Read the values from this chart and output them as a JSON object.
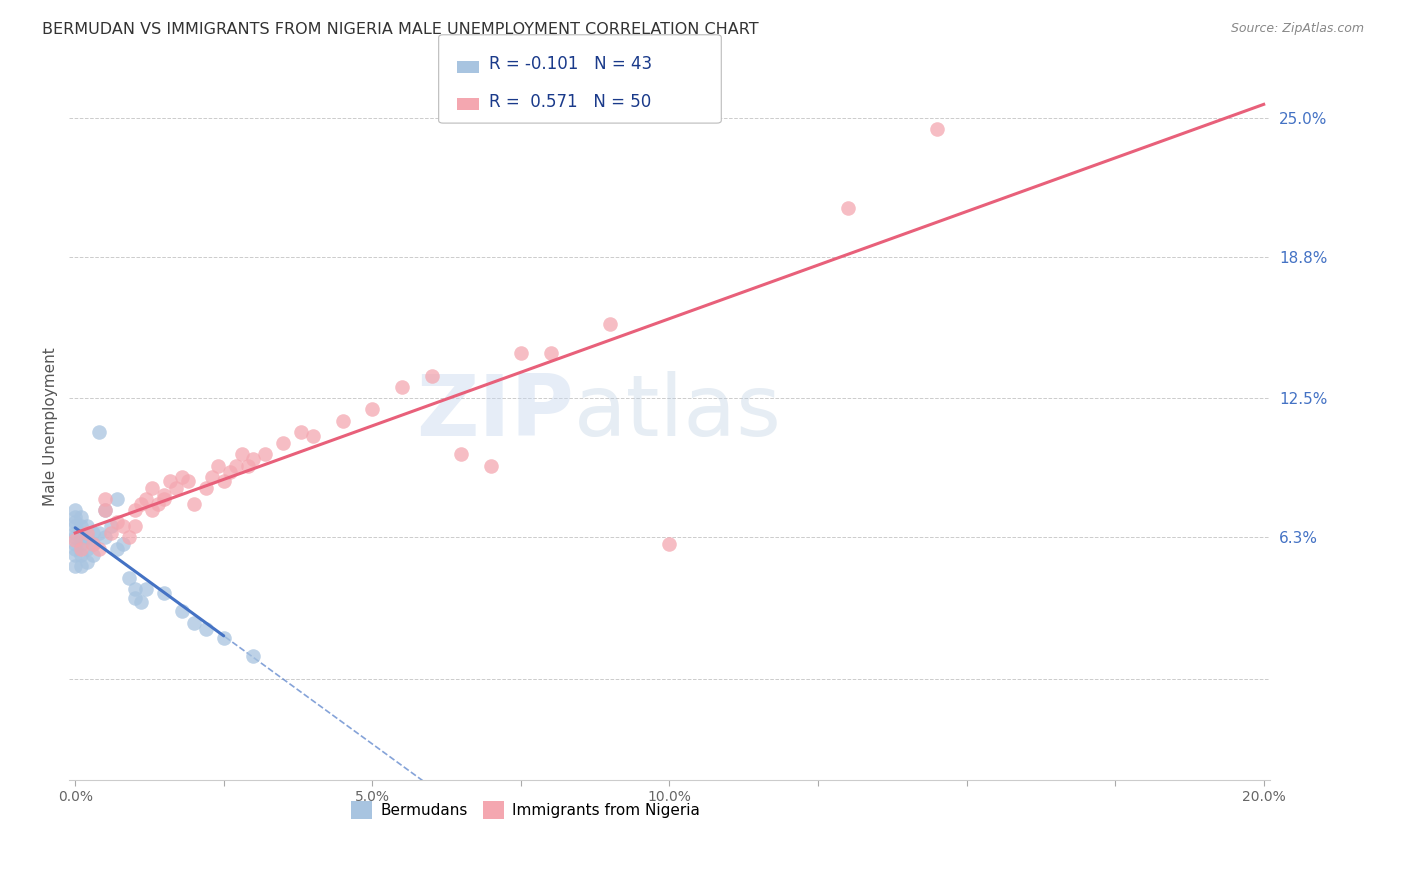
{
  "title": "BERMUDAN VS IMMIGRANTS FROM NIGERIA MALE UNEMPLOYMENT CORRELATION CHART",
  "source": "Source: ZipAtlas.com",
  "ylabel": "Male Unemployment",
  "yticks": [
    0.0,
    0.063,
    0.125,
    0.188,
    0.25
  ],
  "ytick_labels": [
    "",
    "6.3%",
    "12.5%",
    "18.8%",
    "25.0%"
  ],
  "xlim": [
    -0.001,
    0.201
  ],
  "ylim": [
    -0.045,
    0.27
  ],
  "watermark_zip": "ZIP",
  "watermark_atlas": "atlas",
  "bermudans_color": "#a8c4e0",
  "nigeria_color": "#f4a7b0",
  "bermudans_line_color": "#4472c4",
  "nigeria_line_color": "#e8607a",
  "bermudans_R": -0.101,
  "bermudans_N": 43,
  "nigeria_R": 0.571,
  "nigeria_N": 50,
  "bermudans_x": [
    0.0,
    0.0,
    0.0,
    0.0,
    0.0,
    0.0,
    0.0,
    0.0,
    0.0,
    0.0,
    0.001,
    0.001,
    0.001,
    0.001,
    0.001,
    0.001,
    0.001,
    0.002,
    0.002,
    0.002,
    0.002,
    0.003,
    0.003,
    0.003,
    0.004,
    0.004,
    0.005,
    0.005,
    0.006,
    0.007,
    0.007,
    0.008,
    0.009,
    0.01,
    0.01,
    0.011,
    0.012,
    0.015,
    0.018,
    0.02,
    0.022,
    0.025,
    0.03
  ],
  "bermudans_y": [
    0.072,
    0.075,
    0.07,
    0.068,
    0.065,
    0.063,
    0.06,
    0.058,
    0.055,
    0.05,
    0.072,
    0.068,
    0.065,
    0.063,
    0.06,
    0.055,
    0.05,
    0.068,
    0.063,
    0.058,
    0.052,
    0.065,
    0.06,
    0.055,
    0.11,
    0.065,
    0.075,
    0.063,
    0.068,
    0.08,
    0.058,
    0.06,
    0.045,
    0.04,
    0.036,
    0.034,
    0.04,
    0.038,
    0.03,
    0.025,
    0.022,
    0.018,
    0.01
  ],
  "nigeria_x": [
    0.0,
    0.001,
    0.002,
    0.003,
    0.004,
    0.005,
    0.005,
    0.006,
    0.007,
    0.008,
    0.009,
    0.01,
    0.01,
    0.011,
    0.012,
    0.013,
    0.013,
    0.014,
    0.015,
    0.015,
    0.016,
    0.017,
    0.018,
    0.019,
    0.02,
    0.022,
    0.023,
    0.024,
    0.025,
    0.026,
    0.027,
    0.028,
    0.029,
    0.03,
    0.032,
    0.035,
    0.038,
    0.04,
    0.045,
    0.05,
    0.055,
    0.06,
    0.065,
    0.07,
    0.075,
    0.08,
    0.09,
    0.1,
    0.13,
    0.145
  ],
  "nigeria_y": [
    0.062,
    0.058,
    0.065,
    0.06,
    0.058,
    0.075,
    0.08,
    0.065,
    0.07,
    0.068,
    0.063,
    0.075,
    0.068,
    0.078,
    0.08,
    0.075,
    0.085,
    0.078,
    0.082,
    0.08,
    0.088,
    0.085,
    0.09,
    0.088,
    0.078,
    0.085,
    0.09,
    0.095,
    0.088,
    0.092,
    0.095,
    0.1,
    0.095,
    0.098,
    0.1,
    0.105,
    0.11,
    0.108,
    0.115,
    0.12,
    0.13,
    0.135,
    0.1,
    0.095,
    0.145,
    0.145,
    0.158,
    0.06,
    0.21,
    0.245
  ]
}
